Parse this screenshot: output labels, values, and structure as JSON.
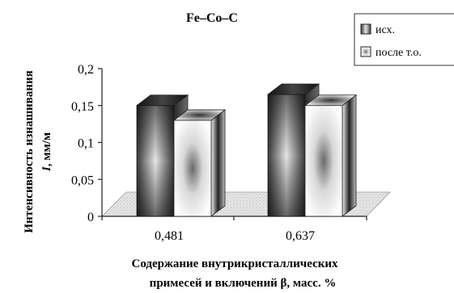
{
  "chart_data": {
    "type": "bar",
    "title": "Fe–Co–C",
    "ylabel_line1": "Интенсивность изнашивания",
    "ylabel_var": "I",
    "ylabel_unit": ", мм/м",
    "xlabel_line1": "Содержание внутрикристаллических",
    "xlabel_line2": "примесей и включений β, масс. %",
    "categories": [
      "0,481",
      "0,637"
    ],
    "series": [
      {
        "name": "исх.",
        "values": [
          0.15,
          0.165
        ]
      },
      {
        "name": "после т.о.",
        "values": [
          0.13,
          0.15
        ]
      }
    ],
    "ylim": [
      0,
      0.2
    ],
    "yticks": [
      0,
      0.05,
      0.1,
      0.15,
      0.2
    ],
    "ytick_labels": [
      "0",
      "0,05",
      "0,1",
      "0,15",
      "0,2"
    ],
    "legend_position": "top-right",
    "grid": false,
    "three_d": true
  }
}
